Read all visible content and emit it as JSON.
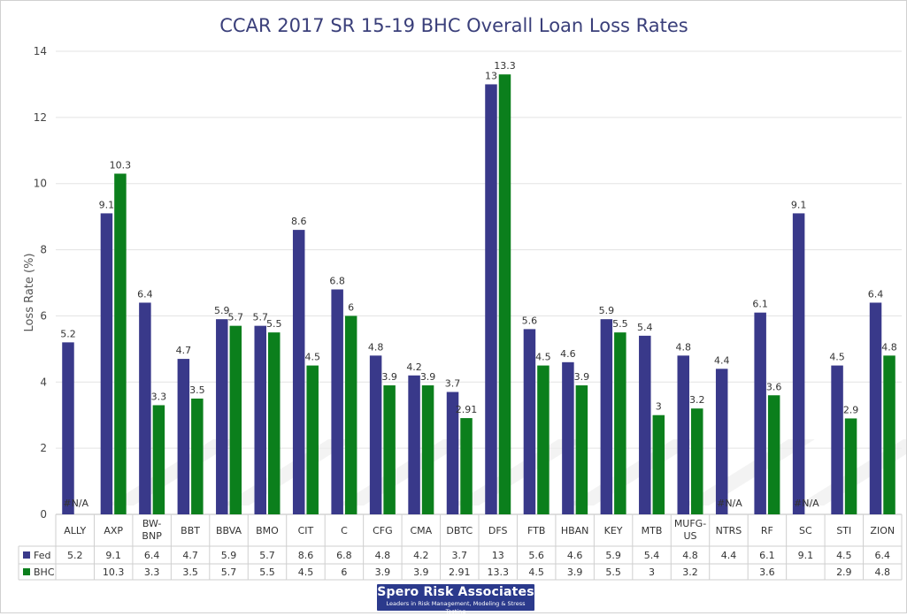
{
  "chart_data": {
    "type": "bar",
    "title": "CCAR 2017 SR 15-19 BHC Overall Loan Loss Rates",
    "ylabel": "Loss Rate (%)",
    "xlabel": "",
    "ylim": [
      0,
      14
    ],
    "yticks": [
      0,
      2,
      4,
      6,
      8,
      10,
      12,
      14
    ],
    "grid": true,
    "legend": "table-below",
    "na_label": "#N/A",
    "categories": [
      "ALLY",
      "AXP",
      "BW-BNP",
      "BBT",
      "BBVA",
      "BMO",
      "CIT",
      "C",
      "CFG",
      "CMA",
      "DBTC",
      "DFS",
      "FTB",
      "HBAN",
      "KEY",
      "MTB",
      "MUFG-US",
      "NTRS",
      "RF",
      "SC",
      "STI",
      "ZION"
    ],
    "series": [
      {
        "name": "Fed",
        "color": "#39398a",
        "values": [
          5.2,
          9.1,
          6.4,
          4.7,
          5.9,
          5.7,
          8.6,
          6.8,
          4.8,
          4.2,
          3.7,
          13,
          5.6,
          4.6,
          5.9,
          5.4,
          4.8,
          4.4,
          6.1,
          9.1,
          4.5,
          6.4
        ],
        "labels": [
          "5.2",
          "9.1",
          "6.4",
          "4.7",
          "5.9",
          "5.7",
          "8.6",
          "6.8",
          "4.8",
          "4.2",
          "3.7",
          "13",
          "5.6",
          "4.6",
          "5.9",
          "5.4",
          "4.8",
          "4.4",
          "6.1",
          "9.1",
          "4.5",
          "6.4"
        ]
      },
      {
        "name": "BHC",
        "color": "#0b7f1c",
        "values": [
          null,
          10.3,
          3.3,
          3.5,
          5.7,
          5.5,
          4.5,
          6,
          3.9,
          3.9,
          2.91,
          13.3,
          4.5,
          3.9,
          5.5,
          3,
          3.2,
          null,
          3.6,
          null,
          2.9,
          4.8
        ],
        "labels": [
          "",
          "10.3",
          "3.3",
          "3.5",
          "5.7",
          "5.5",
          "4.5",
          "6",
          "3.9",
          "3.9",
          "2.91",
          "13.3",
          "4.5",
          "3.9",
          "5.5",
          "3",
          "3.2",
          "",
          "3.6",
          "",
          "2.9",
          "4.8"
        ]
      }
    ]
  },
  "logo": {
    "name": "Spero Risk Associates",
    "tagline": "Leaders in Risk Management, Modeling & Stress Testing"
  }
}
